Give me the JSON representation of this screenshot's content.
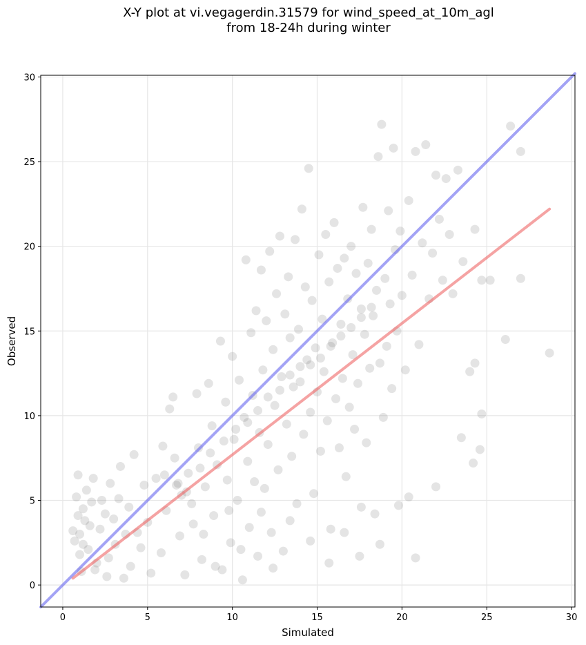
{
  "title_line1": "X-Y plot at vi.vegagerdin.31579 for wind_speed_at_10m_agl",
  "title_line2": "from 18-24h during winter",
  "chart_data": {
    "type": "scatter",
    "xlabel": "Simulated",
    "ylabel": "Observed",
    "xlim": [
      -1.3,
      30.2
    ],
    "ylim": [
      -1.3,
      30.1
    ],
    "xticks": [
      0,
      5,
      10,
      15,
      20,
      25,
      30
    ],
    "yticks": [
      0,
      5,
      10,
      15,
      20,
      25,
      30
    ],
    "grid": true,
    "point_color": "#555555",
    "identity_line": {
      "color": "#6666ee",
      "from": [
        -1.3,
        -1.3
      ],
      "to": [
        30.2,
        30.2
      ]
    },
    "fit_line": {
      "color": "#ee6666",
      "from": [
        0.6,
        0.4
      ],
      "to": [
        28.7,
        22.2
      ]
    },
    "points": [
      [
        1.0,
        3.0
      ],
      [
        1.2,
        4.5
      ],
      [
        0.8,
        5.2
      ],
      [
        1.5,
        2.1
      ],
      [
        1.1,
        0.8
      ],
      [
        0.9,
        6.5
      ],
      [
        1.3,
        3.8
      ],
      [
        1.7,
        4.9
      ],
      [
        2.0,
        1.3
      ],
      [
        0.7,
        2.6
      ],
      [
        1.4,
        5.6
      ],
      [
        2.2,
        3.3
      ],
      [
        1.9,
        0.9
      ],
      [
        2.5,
        4.2
      ],
      [
        1.0,
        1.8
      ],
      [
        2.8,
        6.0
      ],
      [
        3.1,
        2.4
      ],
      [
        2.6,
        0.5
      ],
      [
        3.3,
        5.1
      ],
      [
        3.7,
        3.0
      ],
      [
        4.0,
        1.1
      ],
      [
        4.2,
        7.7
      ],
      [
        3.9,
        4.6
      ],
      [
        4.6,
        2.2
      ],
      [
        4.8,
        5.9
      ],
      [
        5.2,
        0.7
      ],
      [
        5.0,
        3.7
      ],
      [
        5.5,
        6.3
      ],
      [
        5.8,
        1.9
      ],
      [
        6.1,
        4.4
      ],
      [
        6.3,
        10.4
      ],
      [
        6.5,
        11.1
      ],
      [
        6.6,
        7.5
      ],
      [
        6.9,
        2.9
      ],
      [
        7.0,
        5.3
      ],
      [
        7.2,
        0.6
      ],
      [
        7.4,
        6.6
      ],
      [
        7.7,
        3.6
      ],
      [
        7.9,
        11.3
      ],
      [
        8.0,
        8.1
      ],
      [
        8.2,
        1.5
      ],
      [
        8.4,
        5.8
      ],
      [
        8.6,
        11.9
      ],
      [
        8.8,
        9.4
      ],
      [
        8.9,
        4.1
      ],
      [
        9.1,
        7.1
      ],
      [
        9.3,
        14.4
      ],
      [
        9.4,
        0.9
      ],
      [
        9.6,
        10.8
      ],
      [
        9.7,
        6.2
      ],
      [
        9.9,
        2.5
      ],
      [
        10.0,
        13.5
      ],
      [
        10.1,
        8.6
      ],
      [
        10.3,
        5.0
      ],
      [
        10.4,
        12.1
      ],
      [
        10.6,
        0.3
      ],
      [
        10.7,
        9.9
      ],
      [
        10.8,
        19.2
      ],
      [
        10.9,
        7.3
      ],
      [
        11.0,
        3.4
      ],
      [
        11.1,
        14.9
      ],
      [
        11.2,
        11.2
      ],
      [
        11.3,
        6.1
      ],
      [
        11.4,
        16.2
      ],
      [
        11.5,
        1.7
      ],
      [
        11.6,
        9.0
      ],
      [
        11.7,
        18.6
      ],
      [
        11.8,
        12.7
      ],
      [
        11.9,
        5.7
      ],
      [
        12.0,
        15.6
      ],
      [
        12.1,
        8.3
      ],
      [
        12.2,
        19.7
      ],
      [
        12.3,
        3.1
      ],
      [
        12.4,
        13.9
      ],
      [
        12.5,
        10.6
      ],
      [
        12.6,
        17.2
      ],
      [
        12.7,
        6.8
      ],
      [
        12.8,
        20.6
      ],
      [
        12.9,
        12.3
      ],
      [
        13.0,
        2.0
      ],
      [
        13.1,
        16.0
      ],
      [
        13.2,
        9.5
      ],
      [
        13.3,
        18.2
      ],
      [
        13.4,
        14.6
      ],
      [
        13.5,
        7.6
      ],
      [
        13.6,
        11.7
      ],
      [
        13.7,
        20.4
      ],
      [
        13.8,
        4.8
      ],
      [
        13.9,
        15.1
      ],
      [
        14.0,
        12.9
      ],
      [
        14.1,
        22.2
      ],
      [
        14.2,
        8.9
      ],
      [
        14.3,
        17.6
      ],
      [
        14.4,
        13.3
      ],
      [
        14.5,
        24.6
      ],
      [
        14.6,
        10.2
      ],
      [
        14.7,
        16.8
      ],
      [
        14.8,
        5.4
      ],
      [
        14.9,
        14.0
      ],
      [
        15.0,
        11.4
      ],
      [
        15.1,
        19.5
      ],
      [
        15.2,
        7.9
      ],
      [
        15.3,
        15.7
      ],
      [
        15.4,
        12.6
      ],
      [
        15.5,
        20.7
      ],
      [
        15.6,
        9.7
      ],
      [
        15.7,
        17.9
      ],
      [
        15.8,
        3.3
      ],
      [
        15.9,
        14.3
      ],
      [
        16.0,
        21.4
      ],
      [
        16.1,
        11.0
      ],
      [
        16.2,
        18.7
      ],
      [
        16.3,
        8.1
      ],
      [
        16.4,
        15.4
      ],
      [
        16.5,
        12.2
      ],
      [
        16.6,
        19.3
      ],
      [
        16.7,
        6.4
      ],
      [
        16.8,
        16.9
      ],
      [
        16.9,
        10.5
      ],
      [
        17.0,
        20.0
      ],
      [
        17.1,
        13.6
      ],
      [
        17.2,
        9.2
      ],
      [
        17.3,
        18.4
      ],
      [
        17.4,
        11.9
      ],
      [
        17.5,
        1.7
      ],
      [
        17.6,
        16.3
      ],
      [
        17.7,
        22.3
      ],
      [
        17.8,
        14.8
      ],
      [
        17.9,
        8.4
      ],
      [
        18.0,
        19.0
      ],
      [
        18.1,
        12.8
      ],
      [
        18.2,
        21.0
      ],
      [
        18.3,
        15.9
      ],
      [
        18.4,
        4.2
      ],
      [
        18.5,
        17.4
      ],
      [
        18.6,
        25.3
      ],
      [
        18.7,
        13.1
      ],
      [
        18.8,
        27.2
      ],
      [
        18.9,
        9.9
      ],
      [
        19.0,
        18.1
      ],
      [
        19.1,
        14.1
      ],
      [
        19.2,
        22.1
      ],
      [
        19.3,
        16.6
      ],
      [
        19.4,
        11.6
      ],
      [
        19.5,
        25.8
      ],
      [
        19.6,
        19.8
      ],
      [
        19.7,
        15.0
      ],
      [
        19.8,
        4.7
      ],
      [
        19.9,
        20.9
      ],
      [
        20.0,
        17.1
      ],
      [
        20.2,
        12.7
      ],
      [
        20.4,
        22.7
      ],
      [
        20.6,
        18.3
      ],
      [
        20.8,
        25.6
      ],
      [
        21.0,
        14.2
      ],
      [
        21.2,
        20.2
      ],
      [
        21.4,
        26.0
      ],
      [
        21.6,
        16.9
      ],
      [
        21.8,
        19.6
      ],
      [
        22.0,
        24.2
      ],
      [
        22.2,
        21.6
      ],
      [
        22.4,
        18.0
      ],
      [
        22.6,
        24.0
      ],
      [
        22.8,
        20.7
      ],
      [
        23.0,
        17.2
      ],
      [
        23.3,
        24.5
      ],
      [
        23.6,
        19.1
      ],
      [
        24.0,
        12.6
      ],
      [
        24.3,
        21.0
      ],
      [
        24.7,
        18.0
      ],
      [
        24.7,
        10.1
      ],
      [
        24.6,
        8.0
      ],
      [
        23.5,
        8.7
      ],
      [
        24.2,
        7.2
      ],
      [
        22.0,
        5.8
      ],
      [
        20.8,
        1.6
      ],
      [
        20.4,
        5.2
      ],
      [
        26.1,
        14.5
      ],
      [
        26.4,
        27.1
      ],
      [
        27.0,
        25.6
      ],
      [
        27.0,
        18.1
      ],
      [
        28.7,
        13.7
      ],
      [
        25.2,
        18.0
      ],
      [
        24.3,
        13.1
      ],
      [
        0.9,
        4.1
      ],
      [
        1.6,
        3.5
      ],
      [
        2.3,
        5.0
      ],
      [
        1.2,
        2.4
      ],
      [
        3.0,
        3.9
      ],
      [
        2.7,
        1.6
      ],
      [
        3.6,
        0.4
      ],
      [
        4.4,
        3.1
      ],
      [
        0.6,
        3.2
      ],
      [
        1.8,
        6.3
      ],
      [
        3.4,
        7.0
      ],
      [
        5.9,
        8.2
      ],
      [
        6.8,
        6.0
      ],
      [
        7.6,
        4.8
      ],
      [
        8.3,
        3.0
      ],
      [
        9.0,
        1.1
      ],
      [
        9.8,
        4.4
      ],
      [
        10.5,
        2.1
      ],
      [
        11.7,
        4.3
      ],
      [
        12.4,
        1.0
      ],
      [
        13.4,
        3.8
      ],
      [
        14.6,
        2.6
      ],
      [
        15.7,
        1.3
      ],
      [
        16.6,
        3.1
      ],
      [
        17.6,
        4.6
      ],
      [
        18.7,
        2.4
      ],
      [
        6.0,
        6.5
      ],
      [
        6.7,
        5.9
      ],
      [
        7.3,
        5.5
      ],
      [
        8.1,
        6.9
      ],
      [
        8.7,
        7.8
      ],
      [
        9.5,
        8.5
      ],
      [
        10.2,
        9.2
      ],
      [
        10.9,
        9.6
      ],
      [
        11.5,
        10.3
      ],
      [
        12.1,
        11.1
      ],
      [
        12.8,
        11.5
      ],
      [
        13.4,
        12.4
      ],
      [
        14.0,
        12.0
      ],
      [
        14.6,
        13.0
      ],
      [
        15.2,
        13.4
      ],
      [
        15.8,
        14.1
      ],
      [
        16.4,
        14.7
      ],
      [
        17.0,
        15.2
      ],
      [
        17.6,
        15.8
      ],
      [
        18.2,
        16.4
      ]
    ]
  }
}
